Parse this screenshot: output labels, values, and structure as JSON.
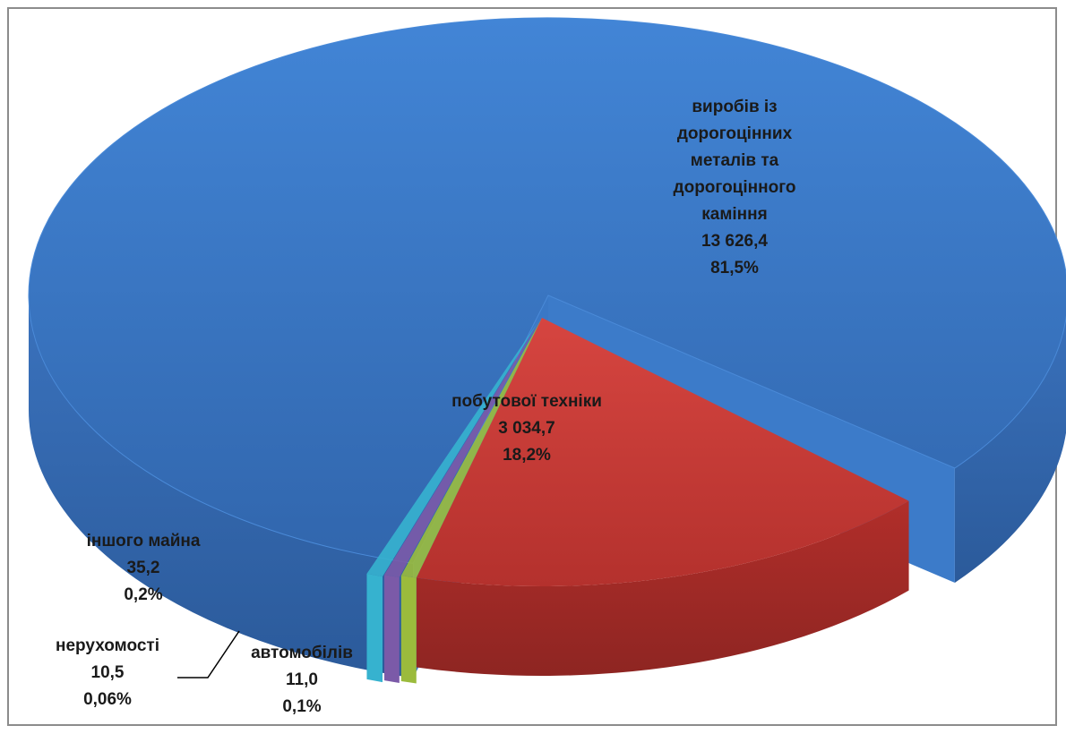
{
  "chart_data": {
    "type": "pie",
    "style": "3d-exploded",
    "slices": [
      {
        "name": "виробів із дорогоцінних металів та дорогоцінного каміння",
        "lines": [
          "виробів із",
          "дорогоцінних",
          "металів та",
          "дорогоцінного",
          "каміння"
        ],
        "value_label": "13 626,4",
        "percent_label": "81,5%",
        "value": 13626.4,
        "percent": 81.5,
        "color": "#3a76c4"
      },
      {
        "name": "побутової техніки",
        "lines": [
          "побутової техніки"
        ],
        "value_label": "3 034,7",
        "percent_label": "18,2%",
        "value": 3034.7,
        "percent": 18.2,
        "color": "#c23b37"
      },
      {
        "name": "автомобілів",
        "lines": [
          "автомобілів"
        ],
        "value_label": "11,0",
        "percent_label": "0,1%",
        "value": 11.0,
        "percent": 0.1,
        "color": "#9bbb3c"
      },
      {
        "name": "нерухомості",
        "lines": [
          "нерухомості"
        ],
        "value_label": "10,5",
        "percent_label": "0,06%",
        "value": 10.5,
        "percent": 0.06,
        "color": "#7b5aa8"
      },
      {
        "name": "іншого майна",
        "lines": [
          "іншого майна"
        ],
        "value_label": "35,2",
        "percent_label": "0,2%",
        "value": 35.2,
        "percent": 0.2,
        "color": "#36b2cf"
      }
    ]
  }
}
